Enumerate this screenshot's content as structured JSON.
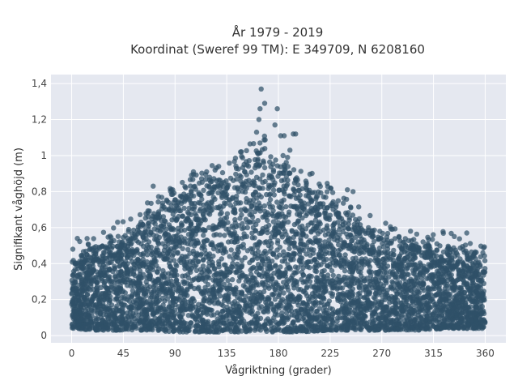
{
  "chart_data": {
    "type": "scatter",
    "title_line1": "År 1979 - 2019",
    "title_line2": "Koordinat (Sweref 99 TM): E 349709, N 6208160",
    "xlabel": "Vågriktning (grader)",
    "ylabel": "Signifikant våghöjd (m)",
    "xlim": [
      -18,
      378
    ],
    "ylim": [
      -0.04,
      1.45
    ],
    "xticks": [
      0,
      45,
      90,
      135,
      180,
      225,
      270,
      315,
      360
    ],
    "xtick_labels": [
      "0",
      "45",
      "90",
      "135",
      "180",
      "225",
      "270",
      "315",
      "360"
    ],
    "yticks": [
      0,
      0.2,
      0.4,
      0.6,
      0.8,
      1,
      1.2,
      1.4
    ],
    "ytick_labels": [
      "0",
      "0,2",
      "0,4",
      "0,6",
      "0,8",
      "1",
      "1,2",
      "1,4"
    ],
    "grid": true,
    "point_color": "#2f5068",
    "plot_background": "#e5e8f0",
    "grid_color": "#ffffff",
    "envelope": {
      "x": [
        0,
        20,
        45,
        70,
        90,
        110,
        135,
        150,
        165,
        180,
        200,
        225,
        250,
        270,
        300,
        330,
        360
      ],
      "upper_max_y": [
        0.42,
        0.5,
        0.56,
        0.68,
        0.76,
        0.84,
        0.9,
        0.98,
        1.05,
        0.95,
        0.86,
        0.76,
        0.64,
        0.56,
        0.5,
        0.5,
        0.45
      ],
      "lower_min_y": [
        0.04,
        0.03,
        0.03,
        0.03,
        0.02,
        0.02,
        0.02,
        0.02,
        0.02,
        0.02,
        0.02,
        0.03,
        0.03,
        0.03,
        0.03,
        0.04,
        0.04
      ]
    },
    "notable_points": [
      {
        "x": 165,
        "y": 1.37
      },
      {
        "x": 168,
        "y": 1.29
      },
      {
        "x": 164,
        "y": 1.26
      },
      {
        "x": 179,
        "y": 1.26
      },
      {
        "x": 163,
        "y": 1.2
      },
      {
        "x": 177,
        "y": 1.17
      },
      {
        "x": 195,
        "y": 1.12
      },
      {
        "x": 193,
        "y": 1.12
      },
      {
        "x": 161,
        "y": 1.13
      },
      {
        "x": 182,
        "y": 1.11
      },
      {
        "x": 185,
        "y": 1.11
      },
      {
        "x": 190,
        "y": 1.03
      },
      {
        "x": 147,
        "y": 1.02
      },
      {
        "x": 184,
        "y": 1.0
      },
      {
        "x": 71,
        "y": 0.83
      },
      {
        "x": 88,
        "y": 0.81
      },
      {
        "x": 240,
        "y": 0.81
      },
      {
        "x": 245,
        "y": 0.8
      },
      {
        "x": 106,
        "y": 0.91
      },
      {
        "x": 128,
        "y": 0.94
      },
      {
        "x": 285,
        "y": 0.55
      },
      {
        "x": 310,
        "y": 0.51
      },
      {
        "x": 318,
        "y": 0.51
      },
      {
        "x": 344,
        "y": 0.57
      },
      {
        "x": 5,
        "y": 0.54
      },
      {
        "x": 1,
        "y": 0.48
      },
      {
        "x": 358,
        "y": 0.46
      },
      {
        "x": 40,
        "y": 0.63
      }
    ]
  }
}
